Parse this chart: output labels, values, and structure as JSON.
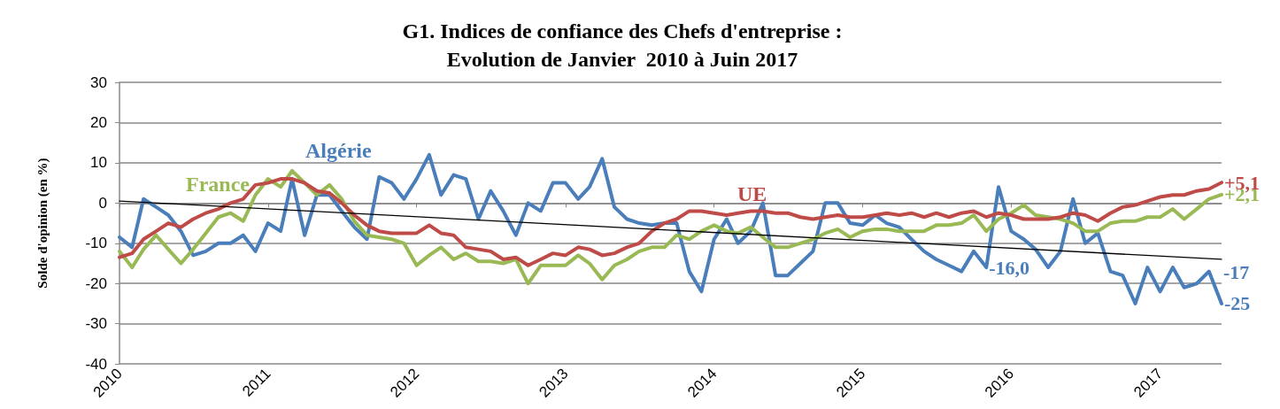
{
  "chart_data": {
    "type": "line",
    "title": "G1. Indices de confiance des Chefs d'entreprise :\nEvolution de Janvier  2010 à Juin 2017",
    "ylabel": "Solde d'opinion (en %)",
    "x": [
      "2010-01",
      "2010-02",
      "2010-03",
      "2010-04",
      "2010-05",
      "2010-06",
      "2010-07",
      "2010-08",
      "2010-09",
      "2010-10",
      "2010-11",
      "2010-12",
      "2011-01",
      "2011-02",
      "2011-03",
      "2011-04",
      "2011-05",
      "2011-06",
      "2011-07",
      "2011-08",
      "2011-09",
      "2011-10",
      "2011-11",
      "2011-12",
      "2012-01",
      "2012-02",
      "2012-03",
      "2012-04",
      "2012-05",
      "2012-06",
      "2012-07",
      "2012-08",
      "2012-09",
      "2012-10",
      "2012-11",
      "2012-12",
      "2013-01",
      "2013-02",
      "2013-03",
      "2013-04",
      "2013-05",
      "2013-06",
      "2013-07",
      "2013-08",
      "2013-09",
      "2013-10",
      "2013-11",
      "2013-12",
      "2014-01",
      "2014-02",
      "2014-03",
      "2014-04",
      "2014-05",
      "2014-06",
      "2014-07",
      "2014-08",
      "2014-09",
      "2014-10",
      "2014-11",
      "2014-12",
      "2015-01",
      "2015-02",
      "2015-03",
      "2015-04",
      "2015-05",
      "2015-06",
      "2015-07",
      "2015-08",
      "2015-09",
      "2015-10",
      "2015-11",
      "2015-12",
      "2016-01",
      "2016-02",
      "2016-03",
      "2016-04",
      "2016-05",
      "2016-06",
      "2016-07",
      "2016-08",
      "2016-09",
      "2016-10",
      "2016-11",
      "2016-12",
      "2017-01",
      "2017-02",
      "2017-03",
      "2017-04",
      "2017-05",
      "2017-06"
    ],
    "series": [
      {
        "name": "Algérie",
        "color": "#4a7ebb",
        "values": [
          -8.5,
          -11,
          1,
          -1,
          -3,
          -7,
          -13,
          -12,
          -10,
          -10,
          -8,
          -12,
          -5,
          -7,
          6,
          -8,
          2,
          2,
          -2,
          -6,
          -9,
          6.5,
          5,
          1,
          6,
          12,
          2,
          7,
          6,
          -4,
          3,
          -2,
          -8,
          0,
          -2,
          5,
          5,
          1,
          4,
          11,
          -1,
          -4,
          -5,
          -5.5,
          -5,
          -5,
          -17,
          -22,
          -9,
          -4,
          -10,
          -7,
          0,
          -18,
          -18,
          -15,
          -12,
          0,
          0,
          -5,
          -5.5,
          -3,
          -5,
          -6,
          -9,
          -12,
          -14,
          -15.5,
          -17,
          -12,
          -16,
          4,
          -7,
          -9,
          -11.5,
          -16,
          -12,
          1,
          -10,
          -7.5,
          -17,
          -18,
          -25,
          -16,
          -22,
          -16,
          -21,
          -20,
          -17,
          -25
        ],
        "value_labels": [
          null,
          null,
          null,
          null,
          null,
          null,
          null,
          null,
          null,
          null,
          null,
          null,
          null,
          null,
          null,
          null,
          null,
          null,
          null,
          null,
          null,
          null,
          null,
          null,
          null,
          null,
          null,
          null,
          null,
          null,
          null,
          null,
          null,
          null,
          null,
          null,
          null,
          null,
          null,
          null,
          null,
          null,
          null,
          null,
          null,
          null,
          null,
          null,
          null,
          null,
          null,
          null,
          null,
          null,
          null,
          null,
          null,
          null,
          null,
          null,
          null,
          null,
          null,
          null,
          null,
          null,
          null,
          null,
          null,
          null,
          "-16,0",
          null,
          null,
          null,
          null,
          null,
          null,
          null,
          null,
          null,
          null,
          null,
          null,
          null,
          null,
          null,
          null,
          null,
          null,
          "-25"
        ]
      },
      {
        "name": "France",
        "color": "#98b954",
        "values": [
          -12,
          -16,
          -11.5,
          -8,
          -11.5,
          -15,
          -11.5,
          -7.5,
          -3.5,
          -2.5,
          -4.5,
          2,
          6,
          4,
          8,
          5,
          2,
          4.5,
          1,
          -4.5,
          -8,
          -8.5,
          -9,
          -10,
          -15.5,
          -13,
          -11,
          -14,
          -12.5,
          -14.5,
          -14.5,
          -15,
          -14,
          -20,
          -15.5,
          -15.5,
          -15.5,
          -13,
          -15,
          -19,
          -15.5,
          -14,
          -12,
          -11,
          -11,
          -8,
          -9,
          -7,
          -5.5,
          -7,
          -7.5,
          -6,
          -8.5,
          -11,
          -11,
          -10,
          -9,
          -7.5,
          -6.5,
          -8.5,
          -7,
          -6.5,
          -6.5,
          -7,
          -7,
          -7,
          -5.5,
          -5.5,
          -5,
          -3,
          -7,
          -4,
          -2.5,
          -0.5,
          -3,
          -3.5,
          -4,
          -5,
          -7,
          -7,
          -5,
          -4.5,
          -4.5,
          -3.5,
          -3.5,
          -1.5,
          -4,
          -1.5,
          1,
          2.1
        ],
        "value_labels": [
          null,
          null,
          null,
          null,
          null,
          null,
          null,
          null,
          null,
          null,
          null,
          null,
          null,
          null,
          null,
          null,
          null,
          null,
          null,
          null,
          null,
          null,
          null,
          null,
          null,
          null,
          null,
          null,
          null,
          null,
          null,
          null,
          null,
          null,
          null,
          null,
          null,
          null,
          null,
          null,
          null,
          null,
          null,
          null,
          null,
          null,
          null,
          null,
          null,
          null,
          null,
          null,
          null,
          null,
          null,
          null,
          null,
          null,
          null,
          null,
          null,
          null,
          null,
          null,
          null,
          null,
          null,
          null,
          null,
          null,
          null,
          null,
          null,
          null,
          null,
          null,
          null,
          null,
          null,
          null,
          null,
          null,
          null,
          null,
          null,
          null,
          null,
          null,
          null,
          "+2,1"
        ]
      },
      {
        "name": "UE",
        "color": "#be4b48",
        "values": [
          -13.5,
          -12.5,
          -9,
          -7,
          -5,
          -6,
          -4,
          -2.5,
          -1.5,
          0,
          1,
          4.5,
          5,
          6,
          6,
          5,
          3,
          2.5,
          0,
          -3,
          -5.5,
          -7,
          -7.5,
          -7.5,
          -7.5,
          -5.5,
          -7.5,
          -8,
          -11,
          -11.5,
          -12,
          -14,
          -13.5,
          -15.5,
          -14,
          -12.5,
          -13,
          -11,
          -11.5,
          -13,
          -12.5,
          -11,
          -10,
          -7,
          -5,
          -4,
          -2,
          -2,
          -2.5,
          -3,
          -2.5,
          -2,
          -2,
          -2.5,
          -2.5,
          -3.5,
          -4,
          -3.5,
          -3,
          -3.5,
          -3.5,
          -3,
          -2.5,
          -3,
          -2.5,
          -3.5,
          -2.5,
          -3.5,
          -2.5,
          -2,
          -3.5,
          -2.5,
          -3,
          -4,
          -4,
          -4,
          -3.5,
          -2.5,
          -3,
          -4.5,
          -2.5,
          -1,
          -0.5,
          0.5,
          1.5,
          2,
          2,
          3,
          3.5,
          5.1
        ],
        "value_labels": [
          null,
          null,
          null,
          null,
          null,
          null,
          null,
          null,
          null,
          null,
          null,
          null,
          null,
          null,
          null,
          null,
          null,
          null,
          null,
          null,
          null,
          null,
          null,
          null,
          null,
          null,
          null,
          null,
          null,
          null,
          null,
          null,
          null,
          null,
          null,
          null,
          null,
          null,
          null,
          null,
          null,
          null,
          null,
          null,
          null,
          null,
          null,
          null,
          null,
          null,
          null,
          null,
          null,
          null,
          null,
          null,
          null,
          null,
          null,
          null,
          null,
          null,
          null,
          null,
          null,
          null,
          null,
          null,
          null,
          null,
          null,
          null,
          null,
          null,
          null,
          null,
          null,
          null,
          null,
          null,
          null,
          null,
          null,
          null,
          null,
          null,
          null,
          null,
          null,
          "+5,1"
        ]
      },
      {
        "type": "line",
        "color": "#000000",
        "x": [
          "2010-01",
          "2017-06"
        ],
        "values": [
          0.5,
          -14
        ]
      }
    ],
    "annotations": [
      "-17"
    ],
    "xlim": [
      "2010-01",
      "2017-06"
    ],
    "xticks": [
      {
        "value": "2010-01",
        "label": "2010"
      },
      {
        "value": "2011-01",
        "label": "2011"
      },
      {
        "value": "2012-01",
        "label": "2012"
      },
      {
        "value": "2013-01",
        "label": "2013"
      },
      {
        "value": "2014-01",
        "label": "2014"
      },
      {
        "value": "2015-01",
        "label": "2015"
      },
      {
        "value": "2016-01",
        "label": "2016"
      },
      {
        "value": "2017-01",
        "label": "2017"
      }
    ],
    "ylim": [
      -40,
      30
    ],
    "yticks": [
      -40,
      -30,
      -20,
      -10,
      0,
      10,
      20,
      30
    ],
    "grid": "y",
    "marker": "none",
    "line_style": "solid"
  }
}
